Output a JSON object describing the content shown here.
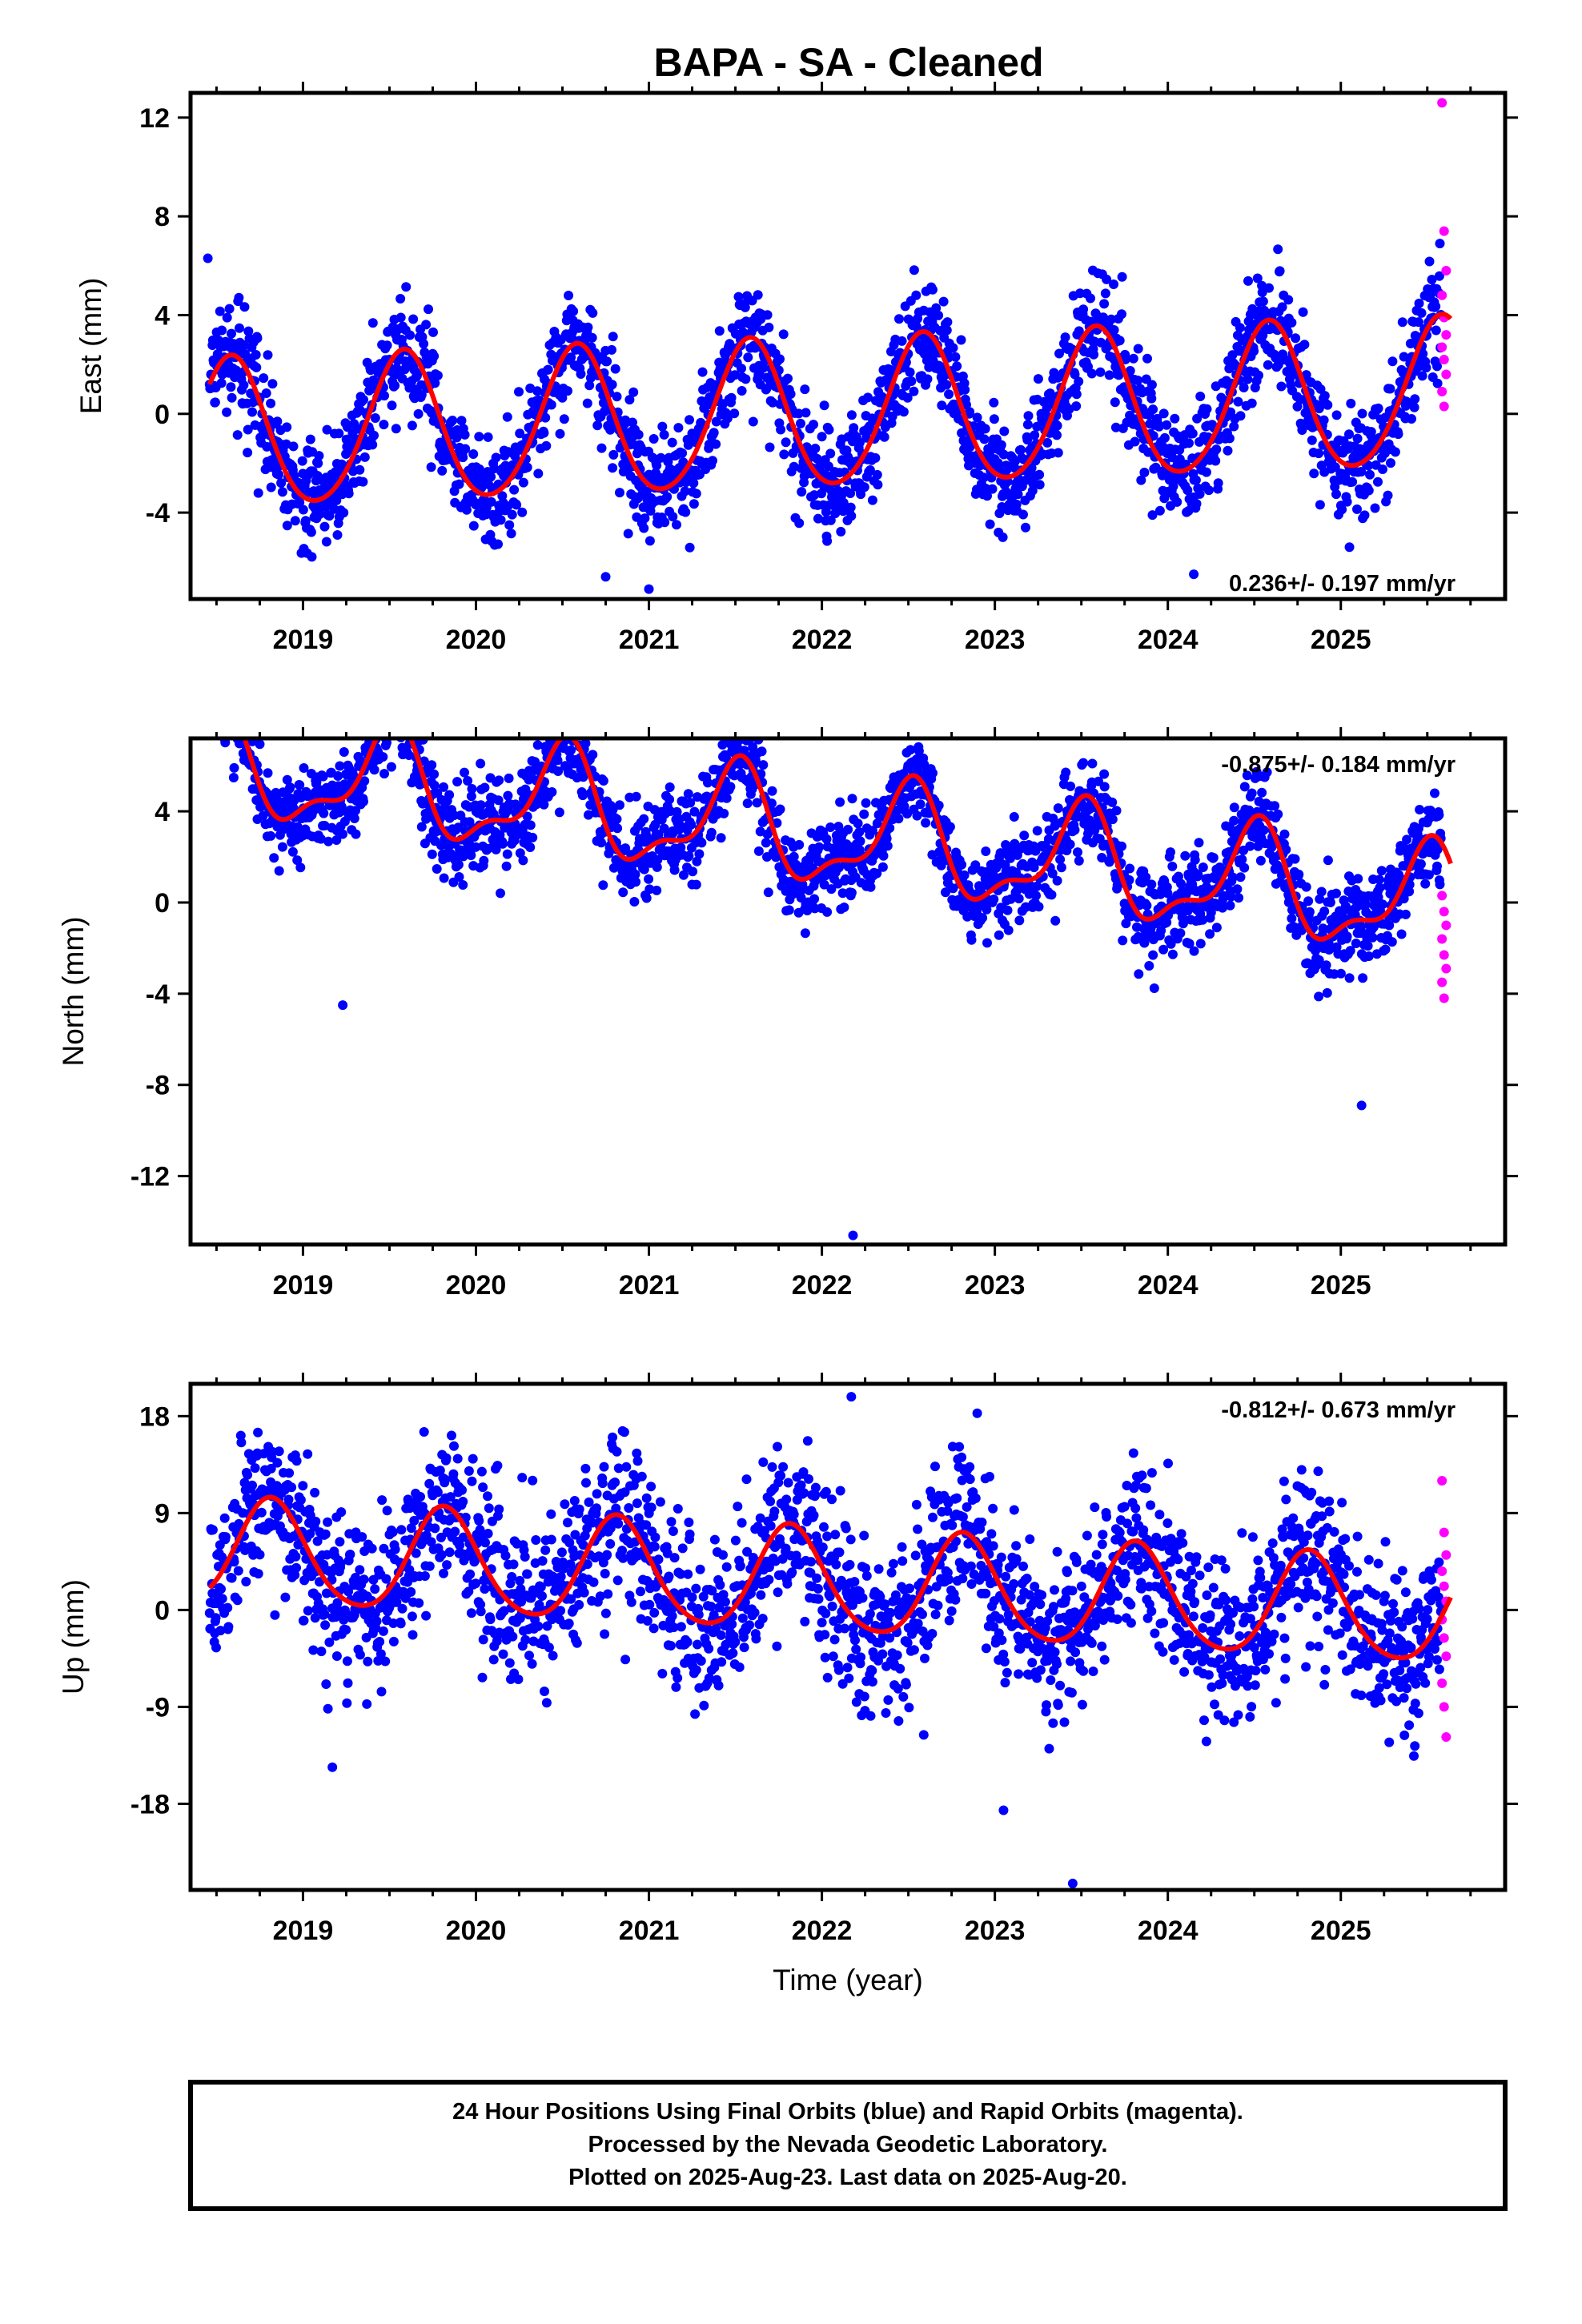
{
  "title": "BAPA  - SA - Cleaned",
  "colors": {
    "final_orbits": "#0000ff",
    "rapid_orbits": "#ff00ff",
    "model_fit": "#ff0000",
    "frame": "#000000"
  },
  "footer": {
    "line1": "24 Hour Positions Using Final Orbits (blue) and Rapid Orbits (magenta).",
    "line2": "Processed by the Nevada Geodetic Laboratory.",
    "line3": "Plotted on 2025-Aug-23. Last data on 2025-Aug-20."
  },
  "chart_data": [
    {
      "type": "scatter",
      "id": "east",
      "ylabel": "East (mm)",
      "xlabel": "",
      "xlim": [
        2018.35,
        2025.95
      ],
      "ylim": [
        -7.5,
        13
      ],
      "xticks": [
        "2019",
        "2020",
        "2021",
        "2022",
        "2023",
        "2024",
        "2025"
      ],
      "yticks": [
        "12",
        "8",
        "4",
        "0",
        "-4"
      ],
      "ytick_values": [
        12,
        8,
        4,
        0,
        -4
      ],
      "rate_label": "0.236+/- 0.197 mm/yr",
      "rate_position": "bottom-right",
      "model": {
        "trend_mm_per_yr": 0.236,
        "offset_mm": -0.1,
        "annual_amp_mm": 3.0,
        "annual_peak_frac": 0.58,
        "semiannual_amp_mm": 0.3,
        "semiannual_peak_frac": 0.1
      },
      "scatter_noise_mm": 1.1,
      "rapid_values_mm": [
        12.6,
        7.4,
        5.8,
        4.8,
        3.9,
        3.2,
        2.7,
        2.2,
        1.6,
        0.9,
        0.3
      ],
      "outliers": [
        {
          "x": 2018.45,
          "y": 6.3
        },
        {
          "x": 2021.0,
          "y": -7.1
        },
        {
          "x": 2020.75,
          "y": -6.6
        },
        {
          "x": 2024.15,
          "y": -6.5
        },
        {
          "x": 2025.05,
          "y": -5.4
        }
      ]
    },
    {
      "type": "scatter",
      "id": "north",
      "ylabel": "North (mm)",
      "xlabel": "",
      "xlim": [
        2018.35,
        2025.95
      ],
      "ylim": [
        -15,
        7.2
      ],
      "xticks": [
        "2019",
        "2020",
        "2021",
        "2022",
        "2023",
        "2024",
        "2025"
      ],
      "yticks": [
        "4",
        "0",
        "-4",
        "-8",
        "-12"
      ],
      "ytick_values": [
        4,
        0,
        -4,
        -8,
        -12
      ],
      "rate_label": "-0.875+/- 0.184 mm/yr",
      "rate_position": "top-right",
      "model": {
        "trend_mm_per_yr": -0.875,
        "offset_mm": 3.0,
        "annual_amp_mm": 2.2,
        "annual_peak_frac": 0.5,
        "semiannual_amp_mm": 0.9,
        "semiannual_peak_frac": 0.05
      },
      "scatter_noise_mm": 1.0,
      "rapid_values_mm": [
        0.3,
        -0.4,
        -1.0,
        -1.6,
        -2.3,
        -2.9,
        -3.5,
        -4.2
      ],
      "outliers": [
        {
          "x": 2022.18,
          "y": -14.6
        },
        {
          "x": 2019.23,
          "y": -4.5
        },
        {
          "x": 2025.12,
          "y": -8.9
        }
      ]
    },
    {
      "type": "scatter",
      "id": "up",
      "ylabel": "Up (mm)",
      "xlabel": "Time (year)",
      "xlim": [
        2018.35,
        2025.95
      ],
      "ylim": [
        -26,
        21
      ],
      "xticks": [
        "2019",
        "2020",
        "2021",
        "2022",
        "2023",
        "2024",
        "2025"
      ],
      "yticks": [
        "18",
        "9",
        "0",
        "-9",
        "-18"
      ],
      "ytick_values": [
        18,
        9,
        0,
        -9,
        -18
      ],
      "rate_label": "-0.812+/- 0.673 mm/yr",
      "rate_position": "top-right",
      "model": {
        "trend_mm_per_yr": -0.812,
        "offset_mm": 2.5,
        "annual_amp_mm": 4.8,
        "annual_peak_frac": 0.82,
        "semiannual_amp_mm": 0.6,
        "semiannual_peak_frac": 0.3
      },
      "scatter_noise_mm": 3.8,
      "rapid_values_mm": [
        12.0,
        7.2,
        5.1,
        3.6,
        2.2,
        0.8,
        -0.9,
        -2.6,
        -4.3,
        -6.8,
        -9.0,
        -11.8
      ],
      "outliers": [
        {
          "x": 2022.17,
          "y": 19.8
        },
        {
          "x": 2023.45,
          "y": -25.4
        },
        {
          "x": 2023.05,
          "y": -18.6
        },
        {
          "x": 2019.17,
          "y": -14.6
        }
      ]
    }
  ]
}
